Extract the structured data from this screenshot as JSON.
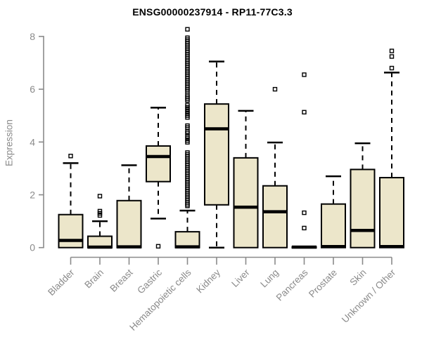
{
  "chart_data": {
    "type": "boxplot",
    "title": "ENSG00000237914 - RP11-77C3.3",
    "ylabel": "Expression",
    "xlabel": "",
    "ylim": [
      0,
      8.4
    ],
    "y_ticks": [
      0,
      2,
      4,
      6,
      8
    ],
    "grid": false,
    "legend": false,
    "colors": {
      "box_fill": "#ece6ca",
      "box_border": "#000000",
      "median": "#000000",
      "whisker": "#000000",
      "axis": "#8a8a8a",
      "title": "#000000"
    },
    "categories": [
      "Bladder",
      "Brain",
      "Breast",
      "Gastric",
      "Hematopoietic cells",
      "Kidney",
      "Liver",
      "Lung",
      "Pancreas",
      "Prostate",
      "Skin",
      "Unknown / Other"
    ],
    "series": [
      {
        "name": "Bladder",
        "whislo": 0,
        "q1": 0,
        "med": 0.27,
        "q3": 1.25,
        "whishi": 3.2,
        "outliers": [
          3.47
        ]
      },
      {
        "name": "Brain",
        "whislo": 0,
        "q1": 0,
        "med": 0.02,
        "q3": 0.43,
        "whishi": 1.0,
        "outliers": [
          1.95,
          1.38,
          1.3,
          1.22
        ]
      },
      {
        "name": "Breast",
        "whislo": 0,
        "q1": 0,
        "med": 0.03,
        "q3": 1.78,
        "whishi": 3.12,
        "outliers": []
      },
      {
        "name": "Gastric",
        "whislo": 1.1,
        "q1": 2.5,
        "med": 3.45,
        "q3": 3.85,
        "whishi": 5.3,
        "outliers": [
          0.05
        ]
      },
      {
        "name": "Hematopoietic cells",
        "whislo": 0,
        "q1": 0,
        "med": 0.03,
        "q3": 0.6,
        "whishi": 1.4,
        "outliers": [
          8.27,
          7.95,
          7.88,
          7.81,
          7.74,
          7.67,
          7.6,
          7.53,
          7.46,
          7.39,
          7.32,
          7.25,
          7.18,
          7.11,
          7.04,
          6.97,
          6.9,
          6.83,
          6.76,
          6.69,
          6.62,
          6.55,
          6.48,
          6.41,
          6.34,
          6.27,
          6.2,
          6.13,
          6.06,
          5.99,
          5.92,
          5.79,
          5.72,
          5.65,
          5.58,
          5.4,
          5.32,
          5.24,
          5.16,
          5.08,
          5.0,
          4.93,
          4.62,
          4.55,
          4.4,
          4.34,
          4.22,
          4.15,
          4.06,
          3.99,
          3.6,
          3.53,
          3.46,
          3.39,
          3.32,
          3.25,
          3.18,
          3.11,
          3.04,
          2.97,
          2.9,
          2.83,
          2.76,
          2.69,
          2.62,
          2.55,
          2.48,
          2.41,
          2.34,
          2.27,
          2.2,
          2.13,
          2.06,
          1.99,
          1.92,
          1.85,
          1.78,
          1.71,
          1.64,
          1.58
        ]
      },
      {
        "name": "Kidney",
        "whislo": 0,
        "q1": 1.62,
        "med": 4.5,
        "q3": 5.44,
        "whishi": 7.05,
        "outliers": []
      },
      {
        "name": "Liver",
        "whislo": 0,
        "q1": 0,
        "med": 1.53,
        "q3": 3.4,
        "whishi": 5.18,
        "outliers": []
      },
      {
        "name": "Lung",
        "whislo": 0,
        "q1": 0,
        "med": 1.36,
        "q3": 2.34,
        "whishi": 3.98,
        "outliers": [
          6.0
        ]
      },
      {
        "name": "Pancreas",
        "whislo": 0,
        "q1": 0,
        "med": 0.02,
        "q3": 0.03,
        "whishi": 0.03,
        "outliers": [
          6.55,
          5.13,
          1.32,
          0.74
        ]
      },
      {
        "name": "Prostate",
        "whislo": 0,
        "q1": 0,
        "med": 0.04,
        "q3": 1.65,
        "whishi": 2.7,
        "outliers": []
      },
      {
        "name": "Skin",
        "whislo": 0,
        "q1": 0,
        "med": 0.65,
        "q3": 2.96,
        "whishi": 3.95,
        "outliers": []
      },
      {
        "name": "Unknown / Other",
        "whislo": 0,
        "q1": 0,
        "med": 0.04,
        "q3": 2.65,
        "whishi": 6.63,
        "outliers": [
          7.45,
          7.24,
          6.8
        ]
      }
    ]
  }
}
